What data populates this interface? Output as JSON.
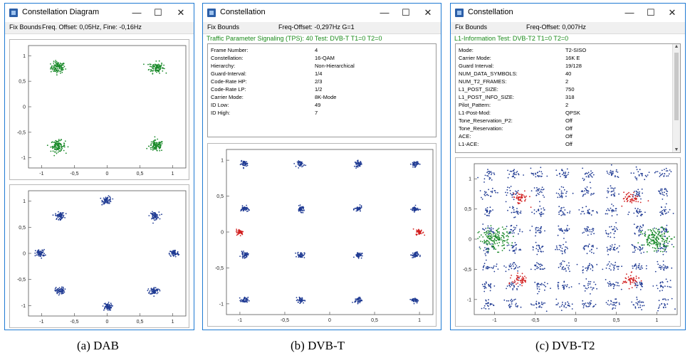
{
  "windows": {
    "dab": {
      "title": "Constellation Diagram",
      "toolbar": {
        "fix_bounds": "Fix Bounds",
        "status": "Freq. Offset: 0,05Hz, Fine: -0,16Hz"
      }
    },
    "dvbt": {
      "title": "Constellation",
      "toolbar": {
        "fix_bounds": "Fix Bounds",
        "status": "Freq-Offset: -0,297Hz G=1"
      },
      "info_header": "Traffic Parameter Signaling (TPS): 40 Test: DVB-T T1=0  T2=0",
      "info": [
        {
          "key": "Frame Number:",
          "value": "4"
        },
        {
          "key": "Constellation:",
          "value": "16-QAM"
        },
        {
          "key": "Hierarchy:",
          "value": "Non-Hierarchical"
        },
        {
          "key": "Guard-Interval:",
          "value": "1/4"
        },
        {
          "key": "Code-Rate HP:",
          "value": "2/3"
        },
        {
          "key": "Code-Rate LP:",
          "value": "1/2"
        },
        {
          "key": "Carrier Mode:",
          "value": "8K-Mode"
        },
        {
          "key": "ID Low:",
          "value": "49"
        },
        {
          "key": "ID High:",
          "value": "7"
        }
      ]
    },
    "dvbt2": {
      "title": "Constellation",
      "toolbar": {
        "fix_bounds": "Fix Bounds",
        "status": "Freq-Offset: 0,007Hz"
      },
      "info_header": "L1-Information Test: DVB-T2 T1=0  T2=0",
      "info": [
        {
          "key": "Mode:",
          "value": "T2-SISO"
        },
        {
          "key": "Carrier Mode:",
          "value": "16K E"
        },
        {
          "key": "Guard Interval:",
          "value": "19/128"
        },
        {
          "key": "NUM_DATA_SYMBOLS:",
          "value": "40"
        },
        {
          "key": "NUM_T2_FRAMES:",
          "value": "2"
        },
        {
          "key": "L1_POST_SIZE:",
          "value": "750"
        },
        {
          "key": "L1_POST_INFO_SIZE:",
          "value": "318"
        },
        {
          "key": "Pilot_Pattern:",
          "value": "2"
        },
        {
          "key": "L1-Post-Mod:",
          "value": "QPSK"
        },
        {
          "key": "Tone_Reservation_P2:",
          "value": "Off"
        },
        {
          "key": "Tone_Reservation:",
          "value": "Off"
        },
        {
          "key": "ACE:",
          "value": "Off"
        },
        {
          "key": "L1-ACE:",
          "value": "Off"
        }
      ]
    }
  },
  "window_controls": {
    "minimize": "—",
    "maximize": "☐",
    "close": "✕"
  },
  "captions": {
    "dab": "(a) DAB",
    "dvbt": "(b) DVB-T",
    "dvbt2": "(c) DVB-T2"
  },
  "colors": {
    "data": "#1f3a93",
    "pilot_red": "#d22020",
    "pilot_green": "#1a8a2a",
    "accent": "#1f7ad3"
  },
  "chart_data": [
    {
      "type": "scatter",
      "id": "dab-top",
      "title": "",
      "xlim": [
        -1.2,
        1.2
      ],
      "ylim": [
        -1.2,
        1.2
      ],
      "xticks": [
        "-1",
        "-0,5",
        "0",
        "0,5",
        "1"
      ],
      "yticks": [
        "1",
        "0,5",
        "0",
        "-0,5",
        "-1"
      ],
      "clusters": [
        {
          "x": -0.75,
          "y": 0.77,
          "color": "green"
        },
        {
          "x": 0.75,
          "y": 0.77,
          "color": "green"
        },
        {
          "x": -0.75,
          "y": -0.77,
          "color": "green"
        },
        {
          "x": 0.75,
          "y": -0.77,
          "color": "green"
        }
      ]
    },
    {
      "type": "scatter",
      "id": "dab-bottom",
      "title": "",
      "xlim": [
        -1.2,
        1.2
      ],
      "ylim": [
        -1.2,
        1.2
      ],
      "xticks": [
        "-1",
        "-0,5",
        "0",
        "0,5",
        "1"
      ],
      "yticks": [
        "1",
        "0,5",
        "0",
        "-0,5",
        "-1"
      ],
      "clusters": [
        {
          "x": 0,
          "y": 1.02,
          "color": "blue"
        },
        {
          "x": 0.72,
          "y": 0.72,
          "color": "blue"
        },
        {
          "x": 1.02,
          "y": 0,
          "color": "blue"
        },
        {
          "x": 0.72,
          "y": -0.72,
          "color": "blue"
        },
        {
          "x": 0,
          "y": -1.02,
          "color": "blue"
        },
        {
          "x": -0.72,
          "y": -0.72,
          "color": "blue"
        },
        {
          "x": -1.02,
          "y": 0,
          "color": "blue"
        },
        {
          "x": -0.72,
          "y": 0.72,
          "color": "blue"
        }
      ]
    },
    {
      "type": "scatter",
      "id": "dvbt",
      "title": "",
      "xlim": [
        -1.15,
        1.15
      ],
      "ylim": [
        -1.15,
        1.15
      ],
      "xticks": [
        "-1",
        "-0,5",
        "0",
        "0,5",
        "1"
      ],
      "yticks": [
        "1",
        "0,5",
        "0",
        "-0,5",
        "-1"
      ],
      "clusters": [
        {
          "x": -0.95,
          "y": 0.95,
          "color": "blue"
        },
        {
          "x": -0.32,
          "y": 0.95,
          "color": "blue"
        },
        {
          "x": 0.32,
          "y": 0.95,
          "color": "blue"
        },
        {
          "x": 0.95,
          "y": 0.95,
          "color": "blue"
        },
        {
          "x": -0.95,
          "y": 0.32,
          "color": "blue"
        },
        {
          "x": -0.32,
          "y": 0.32,
          "color": "blue"
        },
        {
          "x": 0.32,
          "y": 0.32,
          "color": "blue"
        },
        {
          "x": 0.95,
          "y": 0.32,
          "color": "blue"
        },
        {
          "x": -0.95,
          "y": -0.32,
          "color": "blue"
        },
        {
          "x": -0.32,
          "y": -0.32,
          "color": "blue"
        },
        {
          "x": 0.32,
          "y": -0.32,
          "color": "blue"
        },
        {
          "x": 0.95,
          "y": -0.32,
          "color": "blue"
        },
        {
          "x": -0.95,
          "y": -0.95,
          "color": "blue"
        },
        {
          "x": -0.32,
          "y": -0.95,
          "color": "blue"
        },
        {
          "x": 0.32,
          "y": -0.95,
          "color": "blue"
        },
        {
          "x": 0.95,
          "y": -0.95,
          "color": "blue"
        },
        {
          "x": -1.0,
          "y": 0.0,
          "color": "red"
        },
        {
          "x": 1.0,
          "y": 0.0,
          "color": "red"
        }
      ]
    },
    {
      "type": "scatter",
      "id": "dvbt2",
      "title": "",
      "xlim": [
        -1.25,
        1.25
      ],
      "ylim": [
        -1.25,
        1.25
      ],
      "xticks": [
        "-1",
        "-0,5",
        "0",
        "0,5",
        "1"
      ],
      "yticks": [
        "1",
        "0,5",
        "0",
        "-0,5",
        "-1"
      ],
      "grid_levels": [
        -1.08,
        -0.77,
        -0.46,
        -0.15,
        0.15,
        0.46,
        0.77,
        1.08
      ],
      "pilots": [
        {
          "x": -0.68,
          "y": 0.68,
          "color": "red"
        },
        {
          "x": 0.68,
          "y": 0.68,
          "color": "red"
        },
        {
          "x": -0.68,
          "y": -0.68,
          "color": "red"
        },
        {
          "x": 0.68,
          "y": -0.68,
          "color": "red"
        },
        {
          "x": -1.0,
          "y": 0.0,
          "color": "green"
        },
        {
          "x": 1.0,
          "y": 0.0,
          "color": "green"
        }
      ]
    }
  ]
}
